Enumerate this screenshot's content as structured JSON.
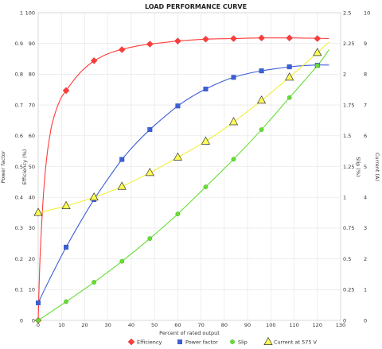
{
  "chart_data": {
    "type": "line",
    "title": "LOAD PERFORMANCE CURVE",
    "xlabel": "Percent of rated output",
    "xlim": [
      0,
      130
    ],
    "x_ticks": [
      "0",
      "10",
      "20",
      "30",
      "40",
      "50",
      "60",
      "70",
      "80",
      "90",
      "100",
      "110",
      "120",
      "130"
    ],
    "axes": [
      {
        "label": "Power factor",
        "range": [
          0,
          1
        ],
        "ticks": [
          "0",
          "0.1",
          "0.2",
          "0.3",
          "0.4",
          "0.5",
          "0.6",
          "0.7",
          "0.8",
          "0.9",
          "1"
        ]
      },
      {
        "label": "Efficiency (%)",
        "range": [
          0,
          100
        ],
        "ticks": [
          "0",
          "10",
          "20",
          "30",
          "40",
          "50",
          "60",
          "70",
          "80",
          "90",
          "100"
        ]
      },
      {
        "label": "Slip (%)",
        "range": [
          0,
          2.5
        ],
        "ticks": [
          "0",
          "0.25",
          "0.5",
          "0.75",
          "1",
          "1.25",
          "1.5",
          "1.75",
          "2",
          "2.25",
          "2.5"
        ]
      },
      {
        "label": "Current (A)",
        "range": [
          0,
          10
        ],
        "ticks": [
          "0",
          "1",
          "2",
          "3",
          "4",
          "5",
          "6",
          "7",
          "8",
          "9",
          "10"
        ]
      }
    ],
    "series": [
      {
        "name": "Efficiency",
        "axis": 1,
        "color": "#ff3b3b",
        "marker": "diamond",
        "points": [
          [
            0,
            0
          ],
          [
            12,
            74.7
          ],
          [
            24,
            84.4
          ],
          [
            36,
            88
          ],
          [
            48,
            89.8
          ],
          [
            60,
            90.8
          ],
          [
            72,
            91.4
          ],
          [
            84,
            91.6
          ],
          [
            96,
            91.8
          ],
          [
            108,
            91.8
          ],
          [
            120,
            91.6
          ]
        ],
        "curve": [
          [
            0,
            0
          ],
          [
            0.5,
            14
          ],
          [
            1,
            24
          ],
          [
            2,
            38
          ],
          [
            3,
            48
          ],
          [
            4,
            55
          ],
          [
            5,
            60
          ],
          [
            6,
            64
          ],
          [
            8,
            69
          ],
          [
            10,
            72.5
          ],
          [
            12,
            74.7
          ],
          [
            15,
            77.8
          ],
          [
            18,
            80.5
          ],
          [
            21,
            82.6
          ],
          [
            24,
            84.3
          ],
          [
            28,
            86
          ],
          [
            32,
            87.2
          ],
          [
            36,
            88.1
          ],
          [
            42,
            89.1
          ],
          [
            48,
            89.8
          ],
          [
            54,
            90.3
          ],
          [
            60,
            90.8
          ],
          [
            72,
            91.4
          ],
          [
            84,
            91.6
          ],
          [
            96,
            91.8
          ],
          [
            108,
            91.8
          ],
          [
            120,
            91.7
          ],
          [
            125,
            91.6
          ]
        ]
      },
      {
        "name": "Power factor",
        "axis": 0,
        "color": "#3b5fd6",
        "marker": "square",
        "points": [
          [
            0,
            0.057
          ],
          [
            12,
            0.238
          ],
          [
            24,
            0.393
          ],
          [
            36,
            0.523
          ],
          [
            48,
            0.62
          ],
          [
            60,
            0.697
          ],
          [
            72,
            0.752
          ],
          [
            84,
            0.79
          ],
          [
            96,
            0.811
          ],
          [
            108,
            0.824
          ],
          [
            120,
            0.829
          ]
        ],
        "curve": [
          [
            0,
            0.057
          ],
          [
            4,
            0.12
          ],
          [
            8,
            0.18
          ],
          [
            12,
            0.238
          ],
          [
            18,
            0.318
          ],
          [
            24,
            0.393
          ],
          [
            30,
            0.46
          ],
          [
            36,
            0.523
          ],
          [
            42,
            0.575
          ],
          [
            48,
            0.62
          ],
          [
            54,
            0.66
          ],
          [
            60,
            0.697
          ],
          [
            66,
            0.727
          ],
          [
            72,
            0.752
          ],
          [
            78,
            0.773
          ],
          [
            84,
            0.79
          ],
          [
            90,
            0.802
          ],
          [
            96,
            0.811
          ],
          [
            102,
            0.818
          ],
          [
            108,
            0.824
          ],
          [
            114,
            0.828
          ],
          [
            120,
            0.83
          ],
          [
            125,
            0.83
          ]
        ]
      },
      {
        "name": "Slip",
        "axis": 2,
        "color": "#66dd33",
        "marker": "circle",
        "points": [
          [
            0,
            0
          ],
          [
            12,
            0.152
          ],
          [
            24,
            0.31
          ],
          [
            36,
            0.48
          ],
          [
            48,
            0.665
          ],
          [
            60,
            0.865
          ],
          [
            72,
            1.085
          ],
          [
            84,
            1.31
          ],
          [
            96,
            1.55
          ],
          [
            108,
            1.81
          ],
          [
            120,
            2.07
          ]
        ],
        "curve": [
          [
            0,
            0
          ],
          [
            12,
            0.152
          ],
          [
            24,
            0.31
          ],
          [
            36,
            0.48
          ],
          [
            48,
            0.665
          ],
          [
            60,
            0.865
          ],
          [
            72,
            1.085
          ],
          [
            84,
            1.31
          ],
          [
            96,
            1.55
          ],
          [
            108,
            1.81
          ],
          [
            120,
            2.07
          ],
          [
            125,
            2.2
          ]
        ]
      },
      {
        "name": "Current at 575 V",
        "axis": 3,
        "color": "#ffff55",
        "marker": "triangle",
        "points": [
          [
            0,
            3.5
          ],
          [
            12,
            3.72
          ],
          [
            24,
            4.0
          ],
          [
            36,
            4.35
          ],
          [
            48,
            4.8
          ],
          [
            60,
            5.3
          ],
          [
            72,
            5.82
          ],
          [
            84,
            6.45
          ],
          [
            96,
            7.15
          ],
          [
            108,
            7.9
          ],
          [
            120,
            8.7
          ]
        ],
        "curve": [
          [
            0,
            3.5
          ],
          [
            12,
            3.72
          ],
          [
            24,
            4.0
          ],
          [
            36,
            4.35
          ],
          [
            48,
            4.8
          ],
          [
            60,
            5.3
          ],
          [
            72,
            5.82
          ],
          [
            84,
            6.45
          ],
          [
            96,
            7.15
          ],
          [
            108,
            7.9
          ],
          [
            120,
            8.7
          ],
          [
            125,
            9.05
          ]
        ]
      }
    ],
    "legend": "bottom",
    "grid": true
  }
}
